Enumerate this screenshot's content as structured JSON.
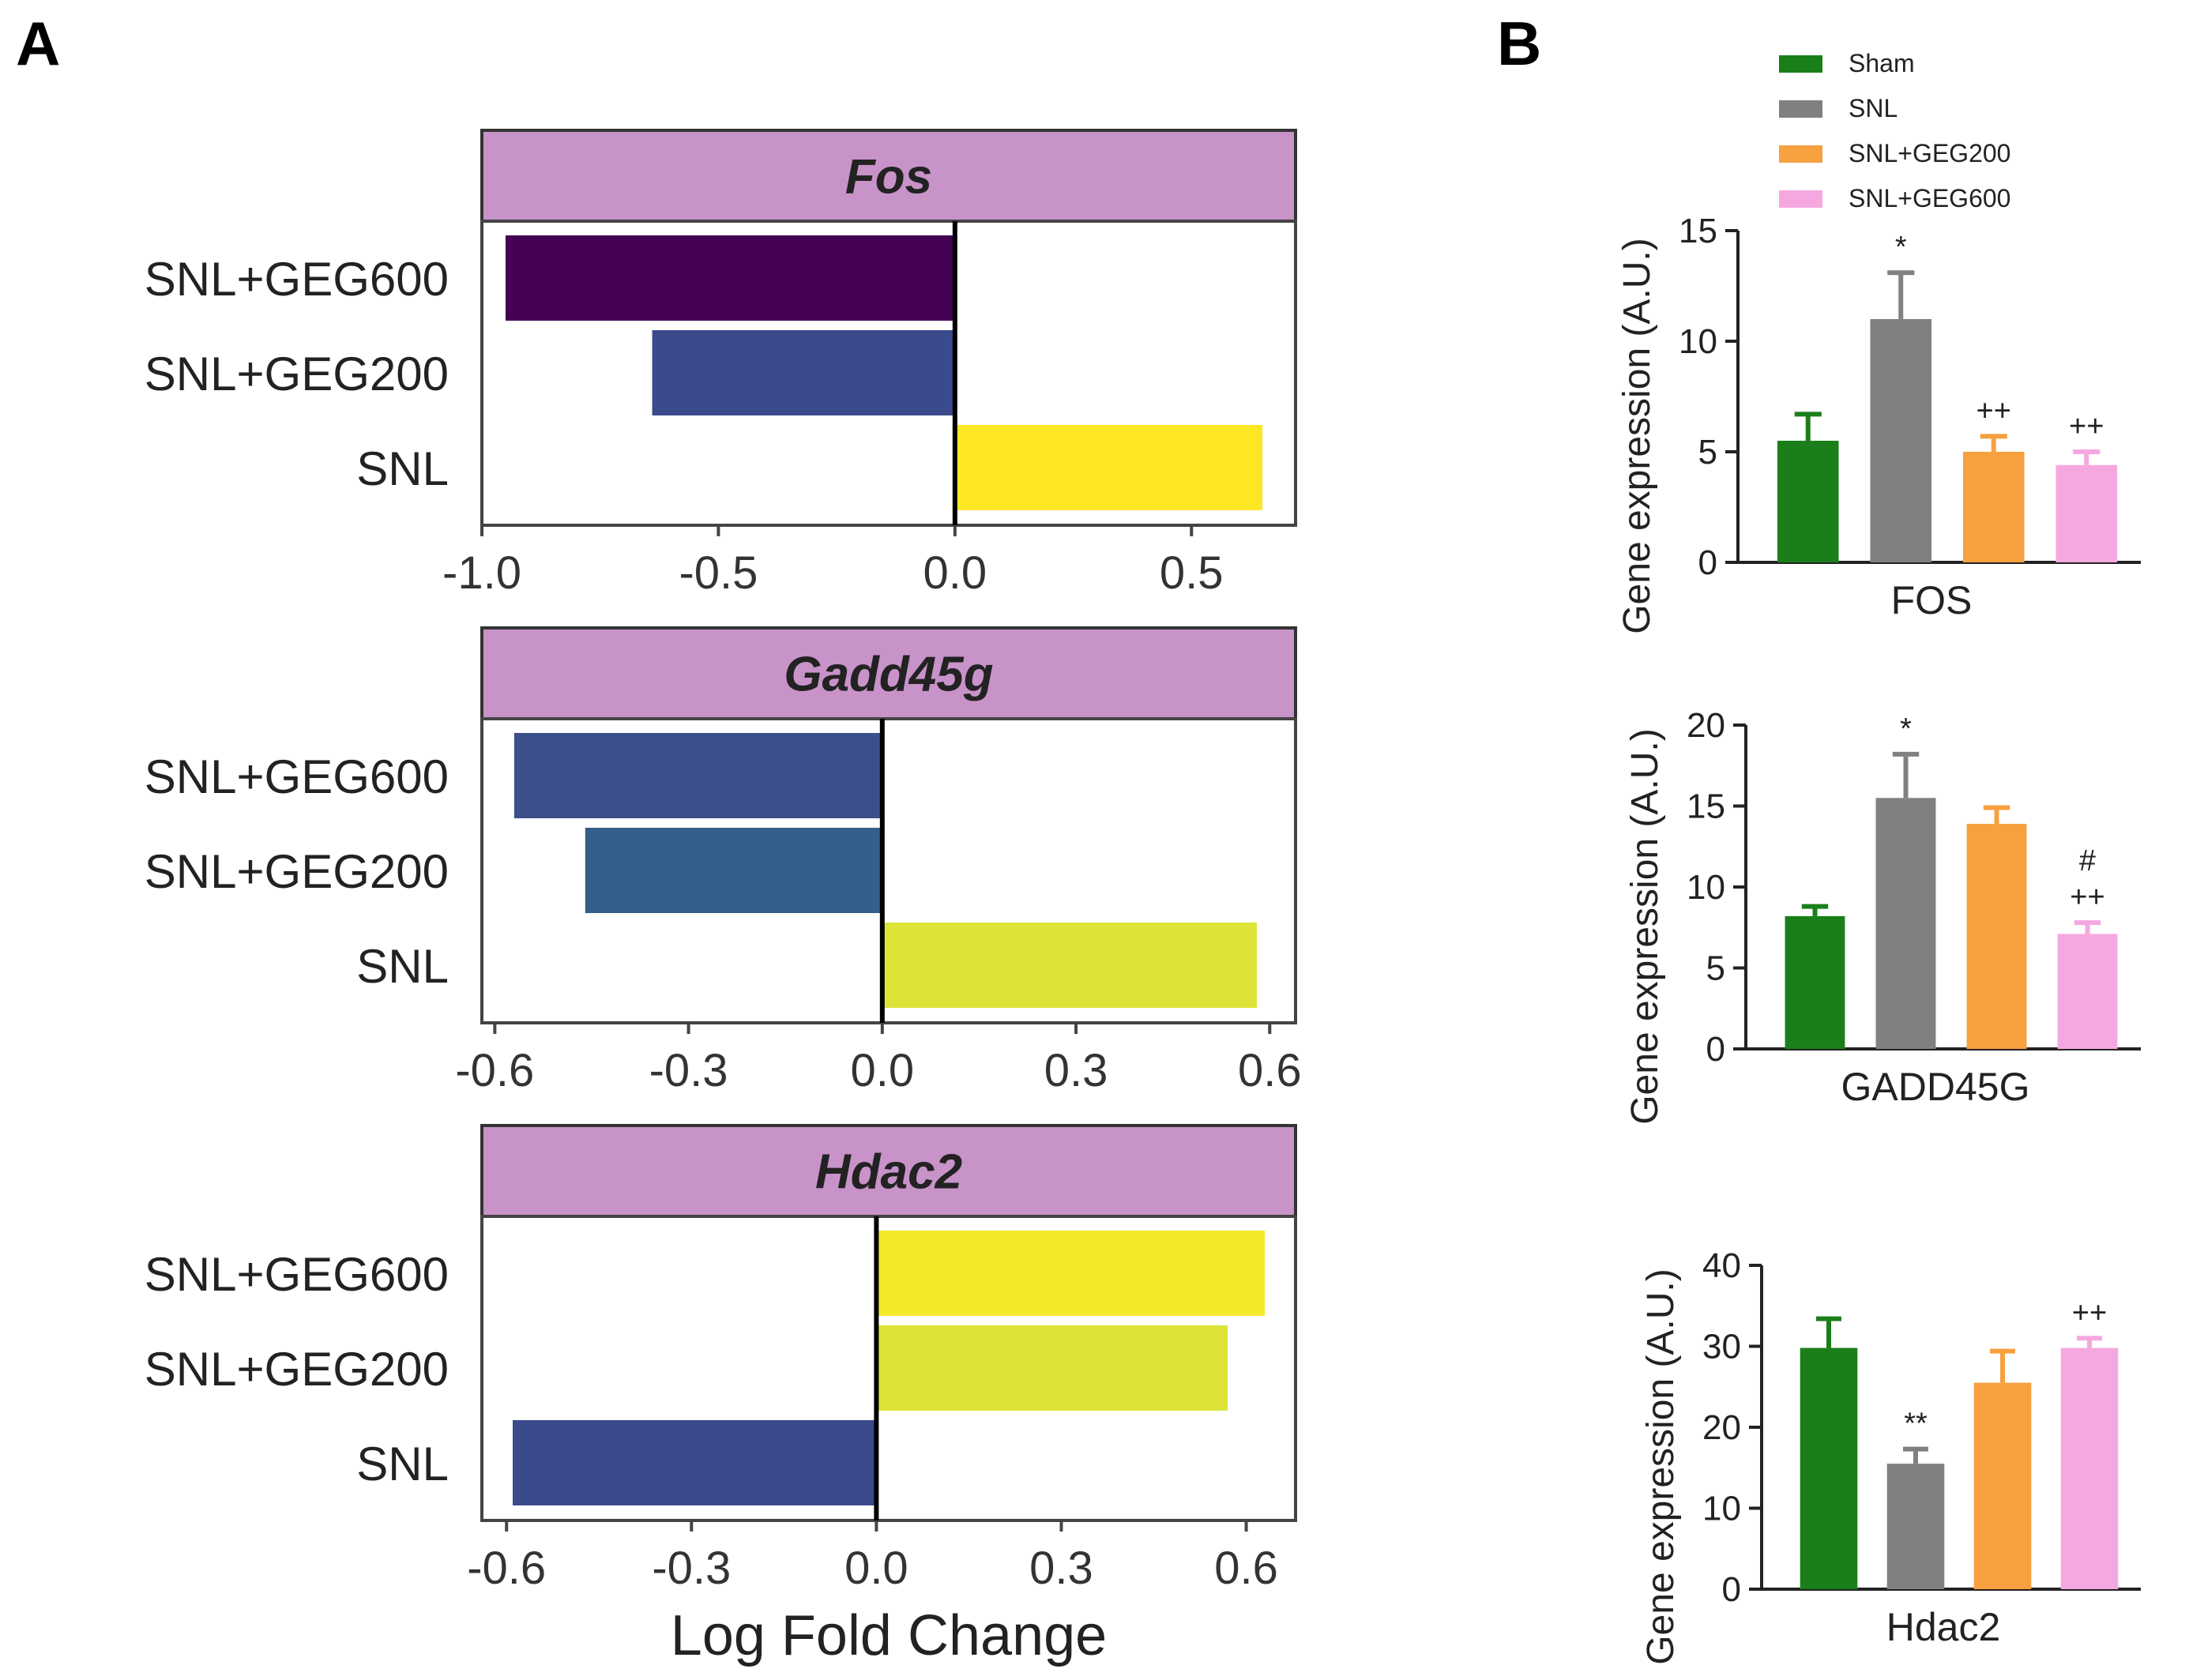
{
  "panels": {
    "a_label": "A",
    "b_label": "B"
  },
  "legend": [
    {
      "label": "Sham",
      "color": "#1a7f1a"
    },
    {
      "label": "SNL",
      "color": "#808080"
    },
    {
      "label": "SNL+GEG200",
      "color": "#f7a040"
    },
    {
      "label": "SNL+GEG600",
      "color": "#f5a8e0"
    }
  ],
  "chart_data": [
    {
      "type": "bar",
      "orientation": "horizontal",
      "panel": "A",
      "title": "Fos",
      "categories": [
        "SNL+GEG600",
        "SNL+GEG200",
        "SNL"
      ],
      "values": [
        -0.95,
        -0.64,
        0.65
      ],
      "colors": [
        "#440154",
        "#3b4a8c",
        "#fde725"
      ],
      "xlim": [
        -1.0,
        0.72
      ],
      "ticks": [
        -1.0,
        -0.5,
        0.0,
        0.5
      ],
      "tick_labels": [
        "-1.0",
        "-0.5",
        "0.0",
        "0.5"
      ],
      "xlabel": ""
    },
    {
      "type": "bar",
      "orientation": "horizontal",
      "panel": "A",
      "title": "Gadd45g",
      "categories": [
        "SNL+GEG600",
        "SNL+GEG200",
        "SNL"
      ],
      "values": [
        -0.57,
        -0.46,
        0.58
      ],
      "colors": [
        "#3b4f8a",
        "#355f8b",
        "#dde437"
      ],
      "xlim": [
        -0.62,
        0.64
      ],
      "ticks": [
        -0.6,
        -0.3,
        0.0,
        0.3,
        0.6
      ],
      "tick_labels": [
        "-0.6",
        "-0.3",
        "0.0",
        "0.3",
        "0.6"
      ],
      "xlabel": ""
    },
    {
      "type": "bar",
      "orientation": "horizontal",
      "panel": "A",
      "title": "Hdac2",
      "categories": [
        "SNL+GEG600",
        "SNL+GEG200",
        "SNL"
      ],
      "values": [
        0.63,
        0.57,
        -0.59
      ],
      "colors": [
        "#f5e82a",
        "#dde437",
        "#3b4a8c"
      ],
      "xlim": [
        -0.64,
        0.68
      ],
      "ticks": [
        -0.6,
        -0.3,
        0.0,
        0.3,
        0.6
      ],
      "tick_labels": [
        "-0.6",
        "-0.3",
        "0.0",
        "0.3",
        "0.6"
      ],
      "xlabel": "Log Fold Change"
    },
    {
      "type": "bar",
      "panel": "B",
      "xlabel": "FOS",
      "ylabel": "Gene expression (A.U.)",
      "categories": [
        "Sham",
        "SNL",
        "SNL+GEG200",
        "SNL+GEG600"
      ],
      "values": [
        5.5,
        11.0,
        5.0,
        4.4
      ],
      "errors": [
        1.2,
        2.1,
        0.7,
        0.6
      ],
      "annotations": [
        [],
        [
          "*"
        ],
        [
          "++"
        ],
        [
          "++"
        ]
      ],
      "ylim": [
        0,
        15
      ],
      "ticks": [
        0,
        5,
        10,
        15
      ]
    },
    {
      "type": "bar",
      "panel": "B",
      "xlabel": "GADD45G",
      "ylabel": "Gene expression (A.U.)",
      "categories": [
        "Sham",
        "SNL",
        "SNL+GEG200",
        "SNL+GEG600"
      ],
      "values": [
        8.2,
        15.5,
        13.9,
        7.1
      ],
      "errors": [
        0.6,
        2.7,
        1.0,
        0.7
      ],
      "annotations": [
        [],
        [
          "*"
        ],
        [],
        [
          "++",
          "#"
        ]
      ],
      "ylim": [
        0,
        20
      ],
      "ticks": [
        0,
        5,
        10,
        15,
        20
      ]
    },
    {
      "type": "bar",
      "panel": "B",
      "xlabel": "Hdac2",
      "ylabel": "Gene expression (A.U.)",
      "categories": [
        "Sham",
        "SNL",
        "SNL+GEG200",
        "SNL+GEG600"
      ],
      "values": [
        29.8,
        15.5,
        25.5,
        29.8
      ],
      "errors": [
        3.6,
        1.8,
        3.9,
        1.2
      ],
      "annotations": [
        [],
        [
          "**"
        ],
        [],
        [
          "++"
        ]
      ],
      "ylim": [
        0,
        40
      ],
      "ticks": [
        0,
        10,
        20,
        30,
        40
      ]
    }
  ]
}
